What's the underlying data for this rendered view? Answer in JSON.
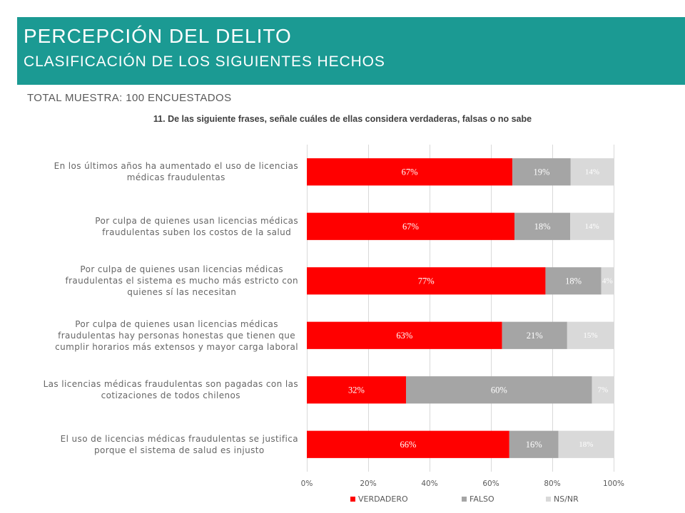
{
  "header": {
    "title": "PERCEPCIÓN DEL DELITO",
    "subtitle": "CLASIFICACIÓN DE LOS SIGUIENTES HECHOS"
  },
  "sample_note": "TOTAL MUESTRA: 100 ENCUESTADOS",
  "question": "11. De las siguiente frases, señale cuáles de ellas considera verdaderas, falsas o no sabe",
  "colors": {
    "header_band": "#1b9a93",
    "gridline": "#d9d9d9"
  },
  "chart_data": {
    "type": "bar",
    "orientation": "horizontal",
    "stacked": true,
    "percent_stacked": true,
    "categories": [
      "En los últimos años ha aumentado el uso de licencias\nmédicas fraudulentas",
      "Por culpa de quienes usan licencias médicas\nfraudulentas suben los costos de la salud",
      "Por culpa de quienes usan licencias médicas\nfraudulentas el sistema es mucho más estricto con\nquienes sí las necesitan",
      "Por culpa de quienes usan licencias médicas\nfraudulentas hay personas honestas que tienen que\ncumplir horarios más extensos y mayor carga laboral",
      "Las licencias médicas fraudulentas son pagadas con las\ncotizaciones de todos chilenos",
      "El uso de licencias médicas fraudulentas se justifica\nporque el sistema de salud es injusto"
    ],
    "series": [
      {
        "name": "VERDADERO",
        "color": "#ff0000",
        "values": [
          67,
          67,
          77,
          63,
          32,
          66
        ],
        "labels": [
          "67%",
          "67%",
          "77%",
          "63%",
          "32%",
          "66%"
        ]
      },
      {
        "name": "FALSO",
        "color": "#a5a5a5",
        "values": [
          19,
          18,
          18,
          21,
          60,
          16
        ],
        "labels": [
          "19%",
          "18%",
          "18%",
          "21%",
          "60%",
          "16%"
        ]
      },
      {
        "name": "NS/NR",
        "color": "#d9d9d9",
        "values": [
          14,
          14,
          4,
          15,
          7,
          18
        ],
        "labels": [
          "14%",
          "14%",
          "4%",
          "15%",
          "7%",
          "18%"
        ]
      }
    ],
    "xlim": [
      0,
      100
    ],
    "xticks": [
      0,
      20,
      40,
      60,
      80,
      100
    ],
    "xtick_labels": [
      "0%",
      "20%",
      "40%",
      "60%",
      "80%",
      "100%"
    ],
    "grid": true,
    "legend": "bottom",
    "data_label_color": "#ffffff"
  }
}
